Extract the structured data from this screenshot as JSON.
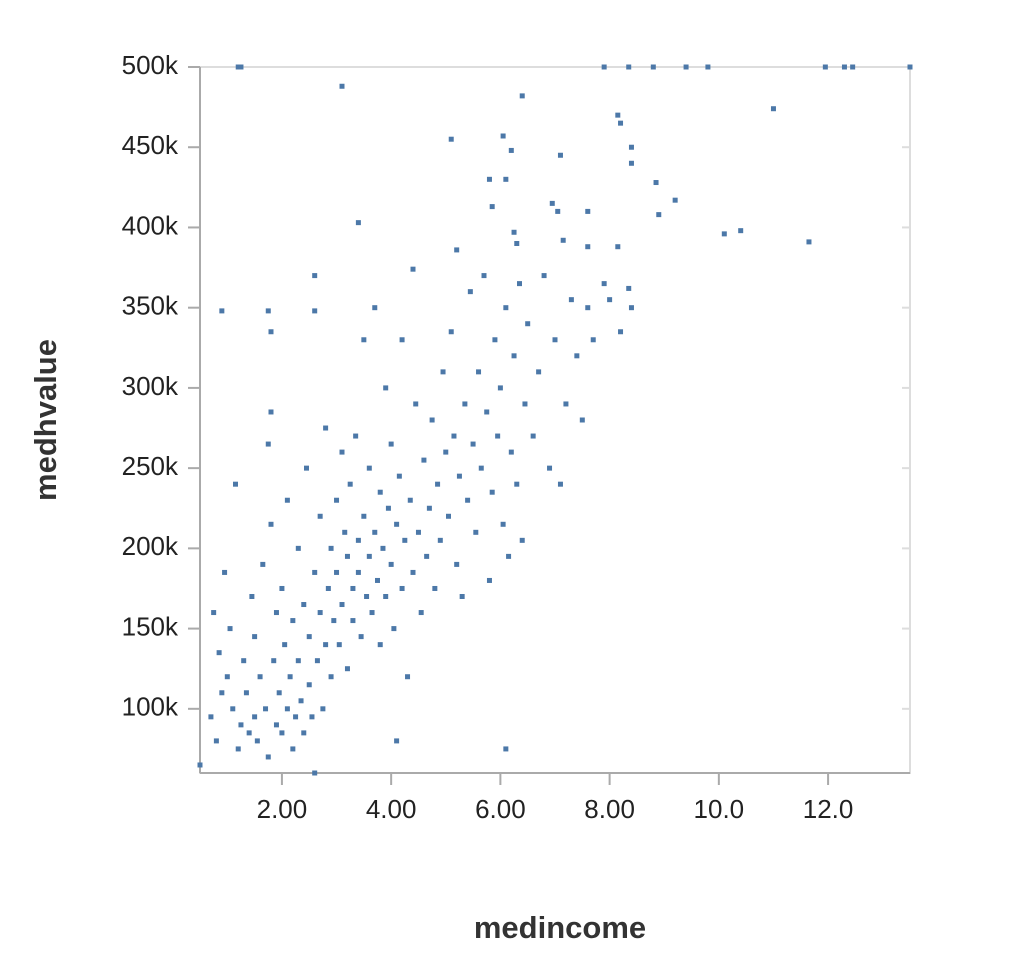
{
  "chart_data": {
    "type": "scatter",
    "x_label": "medincome",
    "y_label": "medhvalue",
    "color": "#4c78a8",
    "x": [
      1.2,
      1.25,
      7.9,
      8.35,
      8.8,
      9.4,
      9.8,
      11.95,
      12.3,
      12.45,
      13.5,
      3.1,
      6.4,
      11.0,
      8.15,
      8.2,
      5.1,
      6.05,
      6.2,
      8.4,
      8.4,
      7.1,
      5.8,
      6.1,
      8.85,
      9.2,
      8.9,
      6.95,
      7.05,
      5.85,
      7.6,
      3.4,
      10.1,
      10.4,
      11.65,
      8.15,
      7.15,
      7.6,
      6.25,
      6.3,
      5.2,
      0.9,
      1.75,
      1.8,
      2.6,
      2.6,
      4.4,
      0.5,
      0.7,
      0.75,
      0.8,
      0.85,
      0.9,
      0.95,
      1.0,
      1.05,
      1.1,
      1.15,
      1.2,
      1.25,
      1.3,
      1.35,
      1.4,
      1.45,
      1.5,
      1.5,
      1.55,
      1.6,
      1.65,
      1.7,
      1.75,
      1.75,
      1.8,
      1.8,
      1.85,
      1.9,
      1.9,
      1.95,
      2.0,
      2.0,
      2.05,
      2.1,
      2.1,
      2.15,
      2.2,
      2.2,
      2.25,
      2.3,
      2.3,
      2.35,
      2.4,
      2.4,
      2.45,
      2.5,
      2.5,
      2.55,
      2.6,
      2.6,
      2.65,
      2.7,
      2.7,
      2.75,
      2.8,
      2.8,
      2.85,
      2.9,
      2.9,
      2.95,
      3.0,
      3.0,
      3.05,
      3.1,
      3.1,
      3.15,
      3.2,
      3.2,
      3.25,
      3.3,
      3.3,
      3.35,
      3.4,
      3.4,
      3.45,
      3.5,
      3.5,
      3.55,
      3.6,
      3.6,
      3.65,
      3.7,
      3.7,
      3.75,
      3.8,
      3.8,
      3.85,
      3.9,
      3.9,
      3.95,
      4.0,
      4.0,
      4.05,
      4.1,
      4.1,
      4.15,
      4.2,
      4.2,
      4.25,
      4.3,
      4.35,
      4.4,
      4.45,
      4.5,
      4.55,
      4.6,
      4.65,
      4.7,
      4.75,
      4.8,
      4.85,
      4.9,
      4.95,
      5.0,
      5.05,
      5.1,
      5.15,
      5.2,
      5.25,
      5.3,
      5.35,
      5.4,
      5.45,
      5.5,
      5.55,
      5.6,
      5.65,
      5.7,
      5.75,
      5.8,
      5.85,
      5.9,
      5.95,
      6.0,
      6.05,
      6.1,
      6.15,
      6.2,
      6.25,
      6.3,
      6.35,
      6.4,
      6.45,
      6.5,
      6.6,
      6.7,
      6.8,
      6.9,
      7.0,
      7.1,
      7.2,
      7.3,
      7.4,
      7.5,
      7.6,
      7.7,
      7.9,
      8.0,
      8.2,
      8.35,
      8.4,
      6.1
    ],
    "values": [
      500000,
      500000,
      500000,
      500000,
      500000,
      500000,
      500000,
      500000,
      500000,
      500000,
      500000,
      488000,
      482000,
      474000,
      470000,
      465000,
      455000,
      457000,
      448000,
      450000,
      440000,
      445000,
      430000,
      430000,
      428000,
      417000,
      408000,
      415000,
      410000,
      413000,
      410000,
      403000,
      396000,
      398000,
      391000,
      388000,
      392000,
      388000,
      397000,
      390000,
      386000,
      348000,
      348000,
      335000,
      370000,
      348000,
      374000,
      65000,
      95000,
      160000,
      80000,
      135000,
      110000,
      185000,
      120000,
      150000,
      100000,
      240000,
      75000,
      90000,
      130000,
      110000,
      85000,
      170000,
      95000,
      145000,
      80000,
      120000,
      190000,
      100000,
      70000,
      265000,
      215000,
      285000,
      130000,
      90000,
      160000,
      110000,
      175000,
      85000,
      140000,
      100000,
      230000,
      120000,
      155000,
      75000,
      95000,
      200000,
      130000,
      105000,
      165000,
      85000,
      250000,
      115000,
      145000,
      95000,
      185000,
      60000,
      130000,
      160000,
      220000,
      100000,
      140000,
      275000,
      175000,
      200000,
      120000,
      155000,
      230000,
      185000,
      140000,
      260000,
      165000,
      210000,
      195000,
      125000,
      240000,
      175000,
      155000,
      270000,
      205000,
      185000,
      145000,
      220000,
      330000,
      170000,
      250000,
      195000,
      160000,
      350000,
      210000,
      180000,
      235000,
      140000,
      200000,
      300000,
      170000,
      225000,
      190000,
      265000,
      150000,
      215000,
      80000,
      245000,
      175000,
      330000,
      205000,
      120000,
      230000,
      185000,
      290000,
      210000,
      160000,
      255000,
      195000,
      225000,
      280000,
      175000,
      240000,
      205000,
      310000,
      260000,
      220000,
      335000,
      270000,
      190000,
      245000,
      170000,
      290000,
      230000,
      360000,
      265000,
      210000,
      310000,
      250000,
      370000,
      285000,
      180000,
      235000,
      330000,
      270000,
      300000,
      215000,
      350000,
      195000,
      260000,
      320000,
      240000,
      365000,
      205000,
      290000,
      340000,
      270000,
      310000,
      370000,
      250000,
      330000,
      240000,
      290000,
      355000,
      320000,
      280000,
      350000,
      330000,
      365000,
      355000,
      335000,
      362000,
      350000,
      75000
    ],
    "xlim": [
      0.5,
      13.5
    ],
    "xticks": [
      {
        "value": 2,
        "label": "2.00"
      },
      {
        "value": 4,
        "label": "4.00"
      },
      {
        "value": 6,
        "label": "6.00"
      },
      {
        "value": 8,
        "label": "8.00"
      },
      {
        "value": 10,
        "label": "10.0"
      },
      {
        "value": 12,
        "label": "12.0"
      }
    ],
    "ylim": [
      60000,
      500000
    ],
    "yticks": [
      {
        "value": 100000,
        "label": "100k"
      },
      {
        "value": 150000,
        "label": "150k"
      },
      {
        "value": 200000,
        "label": "200k"
      },
      {
        "value": 250000,
        "label": "250k"
      },
      {
        "value": 300000,
        "label": "300k"
      },
      {
        "value": 350000,
        "label": "350k"
      },
      {
        "value": 400000,
        "label": "400k"
      },
      {
        "value": 450000,
        "label": "450k"
      },
      {
        "value": 500000,
        "label": "500k"
      }
    ]
  }
}
